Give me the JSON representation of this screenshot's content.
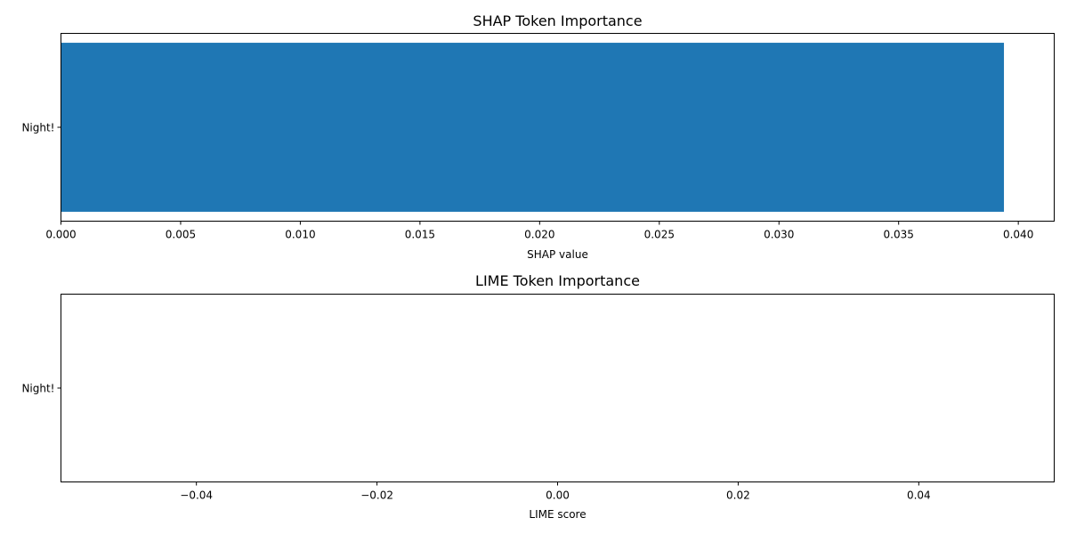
{
  "chart_data": [
    {
      "type": "bar",
      "orientation": "horizontal",
      "title": "SHAP Token Importance",
      "xlabel": "SHAP value",
      "ylabel": "",
      "categories": [
        "Night!"
      ],
      "values": [
        0.0394
      ],
      "xlim": [
        0,
        0.0415
      ],
      "x_ticks": [
        0.0,
        0.005,
        0.01,
        0.015,
        0.02,
        0.025,
        0.03,
        0.035,
        0.04
      ],
      "x_tick_labels": [
        "0.000",
        "0.005",
        "0.010",
        "0.015",
        "0.020",
        "0.025",
        "0.030",
        "0.035",
        "0.040"
      ],
      "grid": false,
      "bar_color": "#1f77b4"
    },
    {
      "type": "bar",
      "orientation": "horizontal",
      "title": "LIME Token Importance",
      "xlabel": "LIME score",
      "ylabel": "",
      "categories": [
        "Night!"
      ],
      "values": [
        0
      ],
      "xlim": [
        -0.055,
        0.055
      ],
      "x_ticks": [
        -0.04,
        -0.02,
        0.0,
        0.02,
        0.04
      ],
      "x_tick_labels": [
        "−0.04",
        "−0.02",
        "0.00",
        "0.02",
        "0.04"
      ],
      "grid": false,
      "bar_color": "#1f77b4"
    }
  ]
}
